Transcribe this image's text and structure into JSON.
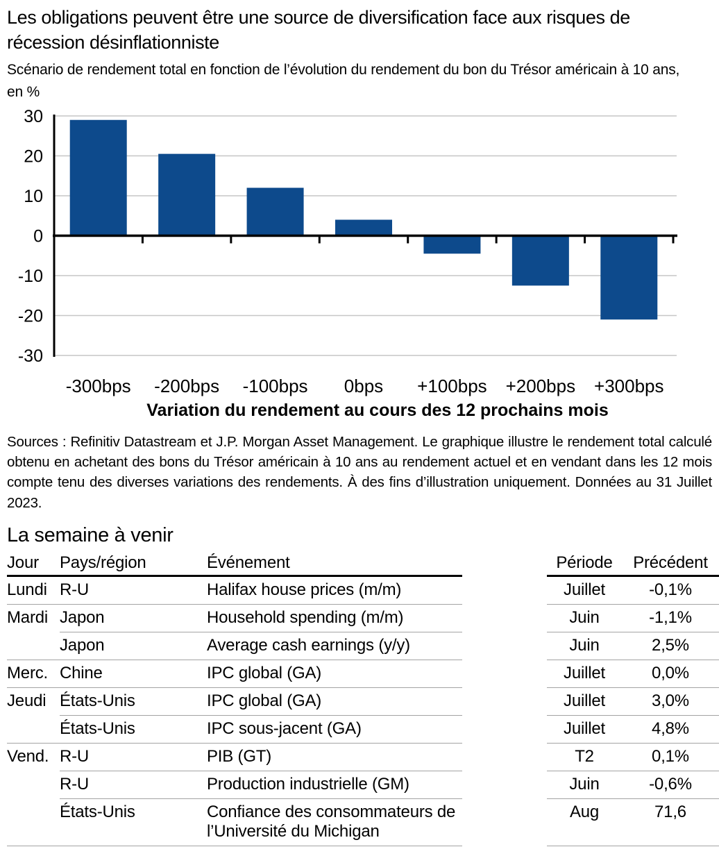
{
  "header": {
    "title": "Les obligations peuvent être une source de diversification face aux risques de récession désinflationniste",
    "subtitle": "Scénario de rendement total en fonction de l’évolution du rendement du bon du Trésor américain à 10 ans, en %"
  },
  "chart_data": {
    "type": "bar",
    "title": "Les obligations peuvent être une source de diversification face aux risques de récession désinflationniste",
    "subtitle": "Scénario de rendement total en fonction de l’évolution du rendement du bon du Trésor américain à 10 ans, en %",
    "categories": [
      "-300bps",
      "-200bps",
      "-100bps",
      "0bps",
      "+100bps",
      "+200bps",
      "+300bps"
    ],
    "values": [
      29,
      20.5,
      12,
      4,
      -4.5,
      -12.5,
      -21
    ],
    "xlabel": "Variation du rendement au cours des 12 prochains mois",
    "ylabel": "",
    "ylim": [
      -30,
      30
    ],
    "yticks": [
      30,
      20,
      10,
      0,
      -10,
      -20,
      -30
    ],
    "grid": true,
    "legend": "none",
    "bar_color": "#0d4a8c",
    "gridline_color": "#c6c6c6",
    "axis_color": "#000000"
  },
  "chart_footer": {
    "sources": "Sources : Refinitiv Datastream et J.P. Morgan Asset Management. Le graphique illustre le rendement total calculé obtenu en achetant des bons du Trésor américain à 10 ans au rendement actuel et en vendant dans les 12 mois compte tenu des diverses variations des rendements. À des fins d’illustration uniquement. Données au 31 Juillet 2023."
  },
  "week_ahead": {
    "heading": "La semaine à venir",
    "columns": [
      "Jour",
      "Pays/région",
      "Événement",
      "Période",
      "Précédent"
    ],
    "rows": [
      {
        "day": "Lundi",
        "region": "R-U",
        "event": "Halifax house prices (m/m)",
        "period": "Juillet",
        "previous": "-0,1%",
        "divider_after": "full"
      },
      {
        "day": "Mardi",
        "region": "Japon",
        "event": "Household spending (m/m)",
        "period": "Juin",
        "previous": "-1,1%",
        "divider_after": "indent"
      },
      {
        "day": "",
        "region": "Japon",
        "event": "Average cash earnings (y/y)",
        "period": "Juin",
        "previous": "2,5%",
        "divider_after": "full"
      },
      {
        "day": "Merc.",
        "region": "Chine",
        "event": "IPC global (GA)",
        "period": "Juillet",
        "previous": "0,0%",
        "divider_after": "full"
      },
      {
        "day": "Jeudi",
        "region": "États-Unis",
        "event": "IPC global (GA)",
        "period": "Juillet",
        "previous": "3,0%",
        "divider_after": "indent"
      },
      {
        "day": "",
        "region": "États-Unis",
        "event": "IPC sous-jacent (GA)",
        "period": "Juillet",
        "previous": "4,8%",
        "divider_after": "full"
      },
      {
        "day": "Vend.",
        "region": "R-U",
        "event": "PIB (GT)",
        "period": "T2",
        "previous": "0,1%",
        "divider_after": "indent"
      },
      {
        "day": "",
        "region": "R-U",
        "event": "Production industrielle (GM)",
        "period": "Juin",
        "previous": "-0,6%",
        "divider_after": "indent"
      },
      {
        "day": "",
        "region": "États-Unis",
        "event": "Confiance des consommateurs de l’Université du Michigan",
        "period": "Aug",
        "previous": "71,6",
        "divider_after": "full"
      }
    ]
  }
}
